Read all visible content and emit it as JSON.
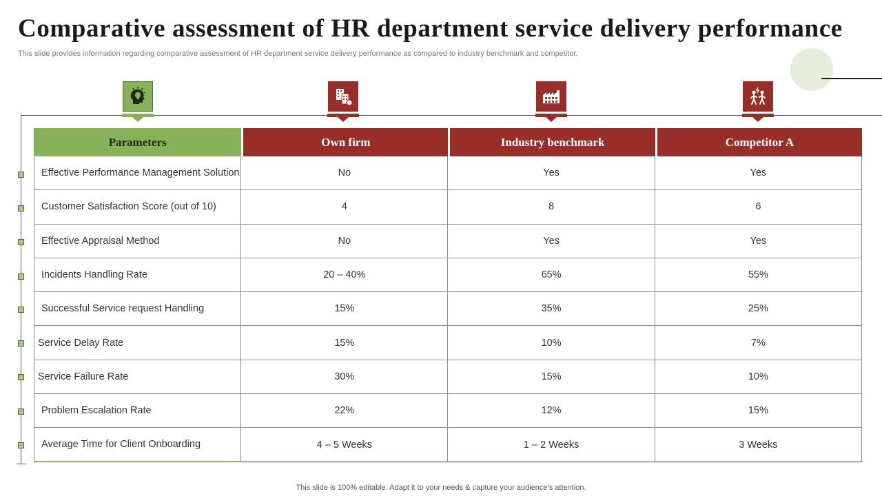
{
  "header": {
    "title": "Comparative assessment of HR department service delivery performance",
    "subtitle": "This slide provides information regarding comparative assessment of HR department service delivery performance as compared to industry benchmark and competitor."
  },
  "icons": {
    "parameters": "head-lightbulb-icon",
    "own_firm": "office-building-icon",
    "industry_benchmark": "factory-icon",
    "competitor": "competitor-people-icon"
  },
  "colors": {
    "accent_green": "#86b25a",
    "accent_red": "#992d28"
  },
  "table": {
    "headers": [
      "Parameters",
      "Own firm",
      "Industry benchmark",
      "Competitor A"
    ],
    "rows": [
      [
        "Effective Performance Management Solution",
        "No",
        "Yes",
        "Yes"
      ],
      [
        "Customer Satisfaction Score (out of 10)",
        "4",
        "8",
        "6"
      ],
      [
        "Effective Appraisal Method",
        "No",
        "Yes",
        "Yes"
      ],
      [
        "Incidents Handling Rate",
        "20 – 40%",
        "65%",
        "55%"
      ],
      [
        "Successful Service request Handling",
        "15%",
        "35%",
        "25%"
      ],
      [
        "Service Delay Rate",
        "15%",
        "10%",
        "7%"
      ],
      [
        "Service Failure Rate",
        "30%",
        "15%",
        "10%"
      ],
      [
        "Problem Escalation Rate",
        "22%",
        "12%",
        "15%"
      ],
      [
        "Average Time for Client Onboarding",
        "4 – 5 Weeks",
        "1 – 2 Weeks",
        "3 Weeks"
      ]
    ]
  },
  "footer": {
    "note": "This slide is 100% editable. Adapt it to your needs & capture your audience’s attention."
  }
}
